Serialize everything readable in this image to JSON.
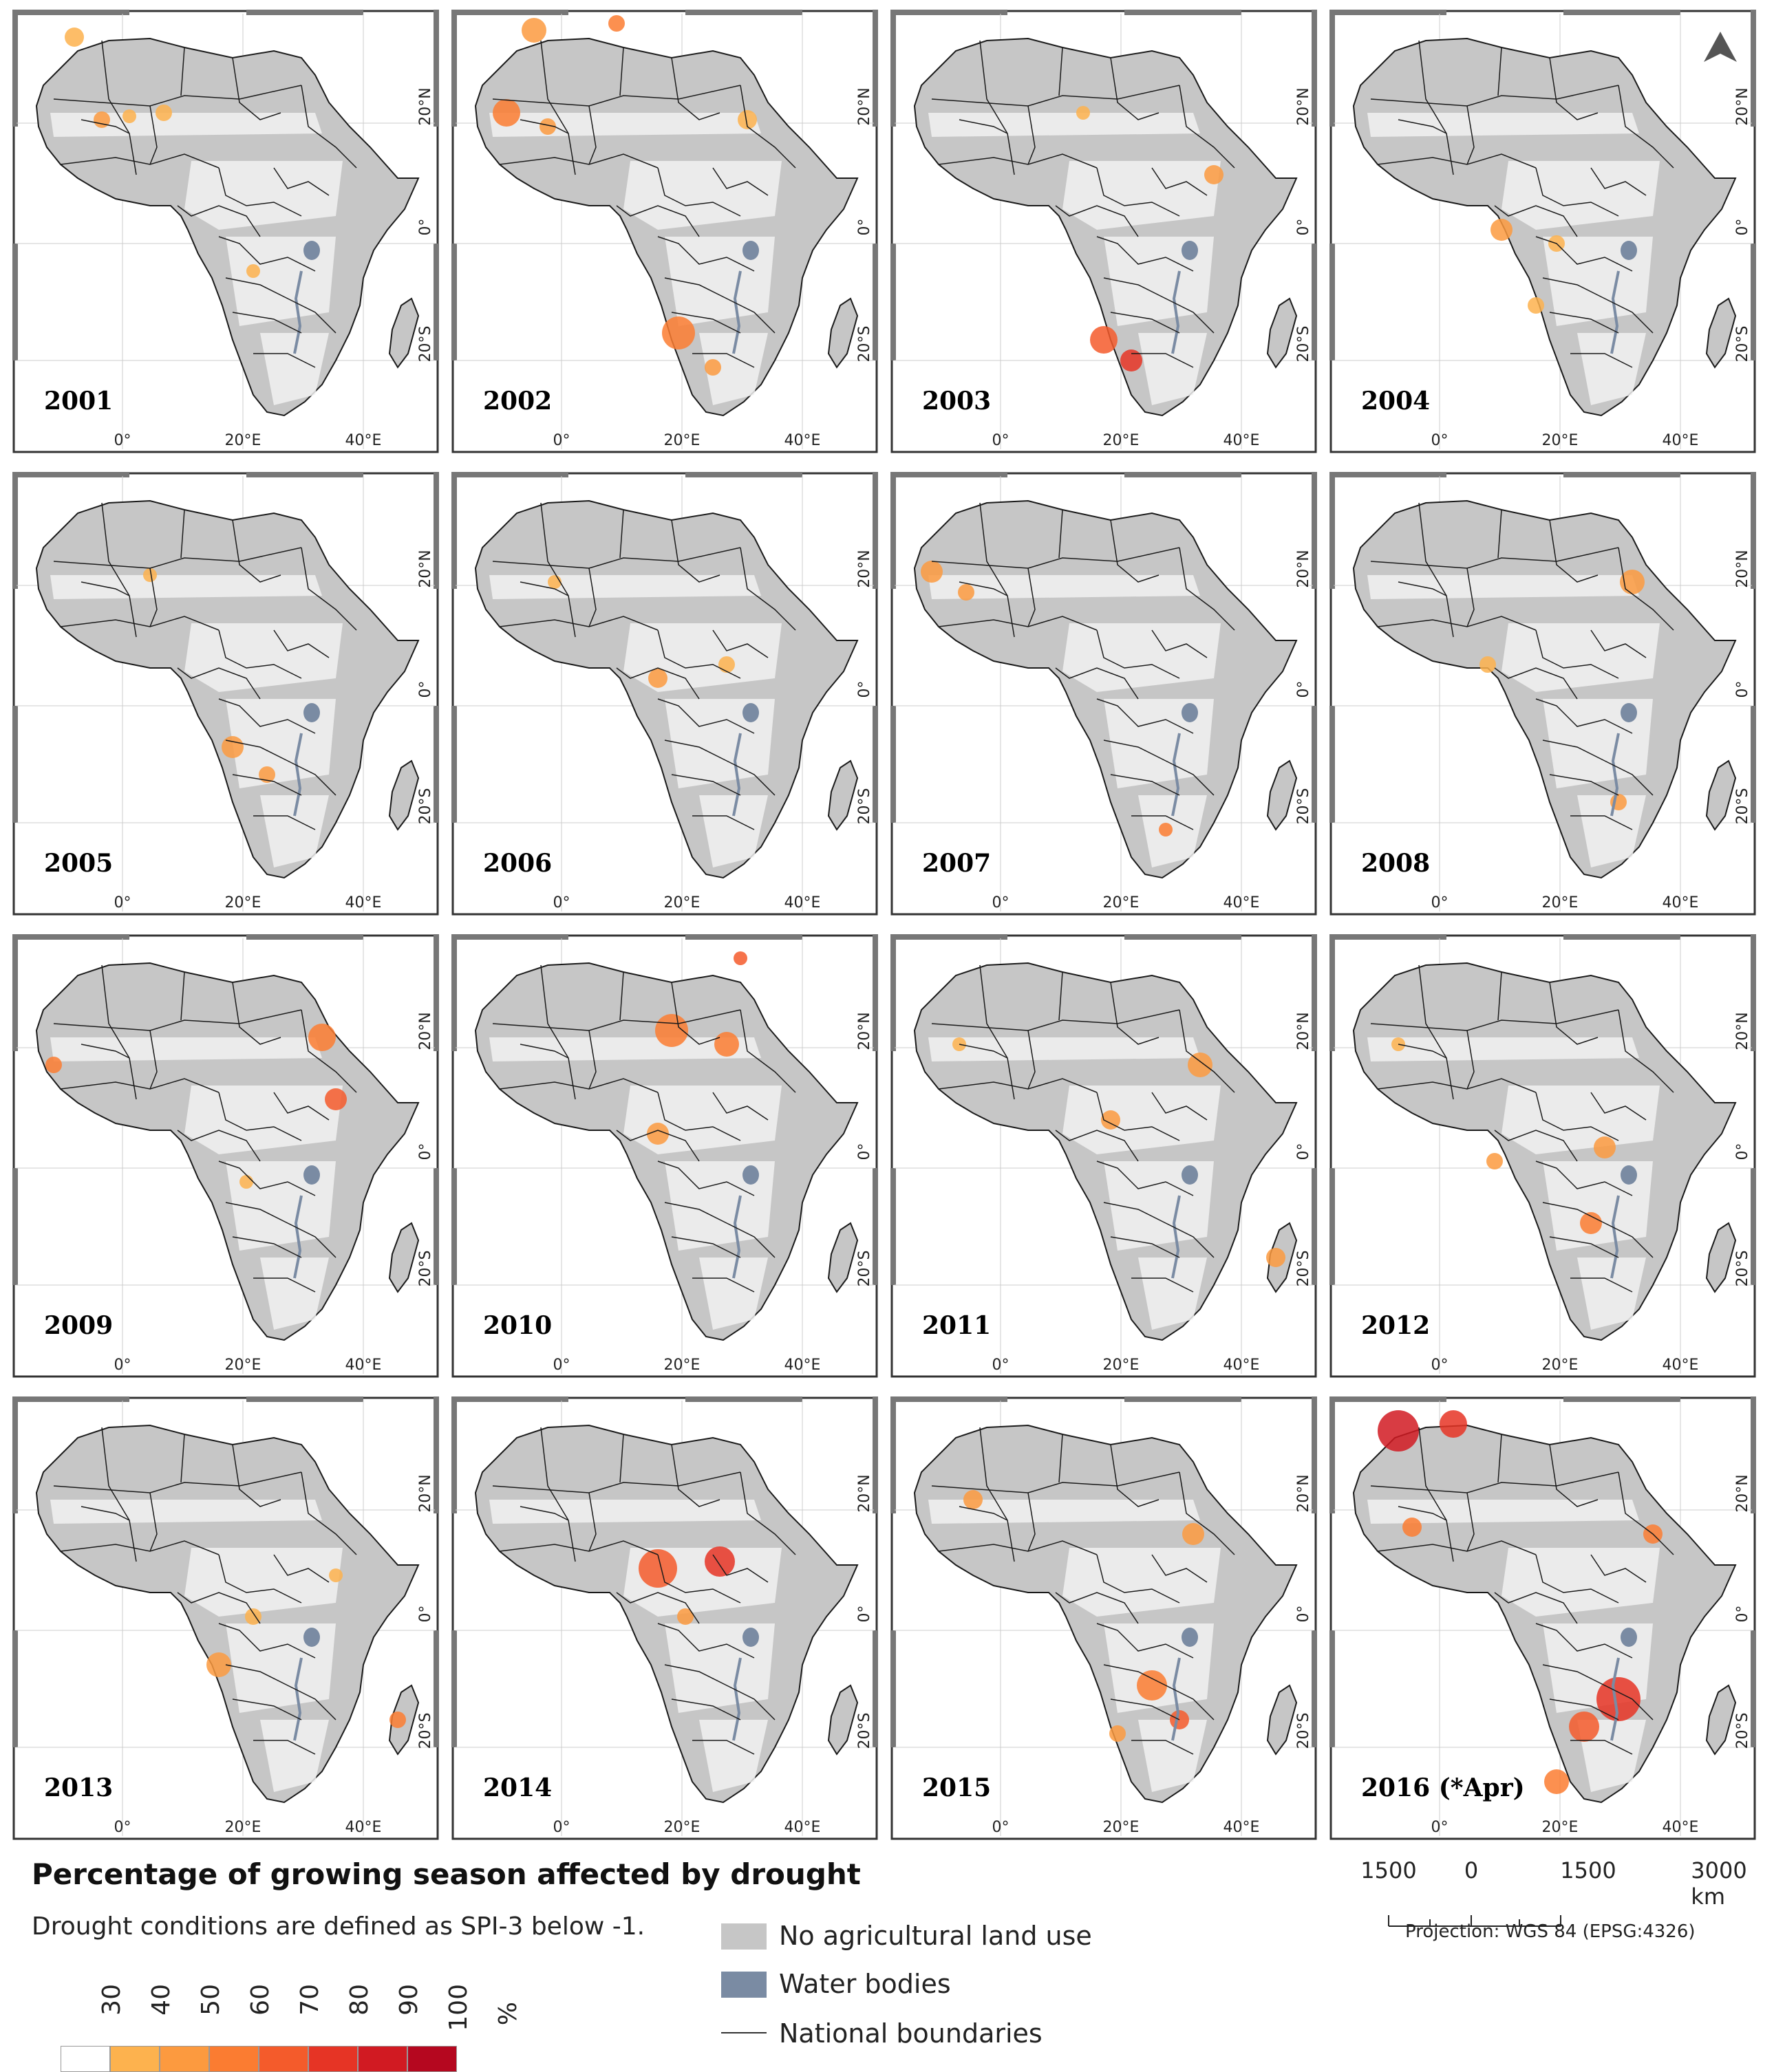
{
  "panels": [
    {
      "year": "2001"
    },
    {
      "year": "2002"
    },
    {
      "year": "2003"
    },
    {
      "year": "2004"
    },
    {
      "year": "2005"
    },
    {
      "year": "2006"
    },
    {
      "year": "2007"
    },
    {
      "year": "2008"
    },
    {
      "year": "2009"
    },
    {
      "year": "2010"
    },
    {
      "year": "2011"
    },
    {
      "year": "2012"
    },
    {
      "year": "2013"
    },
    {
      "year": "2014"
    },
    {
      "year": "2015"
    },
    {
      "year": "2016 (*Apr)"
    }
  ],
  "axis_labels": {
    "lon": [
      "0°",
      "20°E",
      "40°E"
    ],
    "lat": [
      "20°N",
      "0°",
      "20°S"
    ]
  },
  "legend": {
    "title": "Percentage of growing season affected by drought",
    "subtitle": "Drought conditions are defined as SPI-3 below -1.",
    "colorbar_ticks": [
      "30",
      "40",
      "50",
      "60",
      "70",
      "80",
      "90",
      "100"
    ],
    "colorbar_unit": "%",
    "colorbar_colors": [
      "#ffffff",
      "#fdb24e",
      "#fc9a3f",
      "#fb7c31",
      "#f45b2b",
      "#e63425",
      "#d11a22",
      "#b5071f"
    ],
    "items": [
      {
        "label": "No agricultural land use",
        "color": "#c6c6c6"
      },
      {
        "label": "Water bodies",
        "color": "#7a8ba3"
      },
      {
        "label": "National boundaries",
        "color": "#333333"
      }
    ]
  },
  "scalebar": {
    "ticks": [
      "1500",
      "0",
      "1500",
      "3000 km"
    ],
    "projection": "Projection: WGS 84 (EPSG:4326)"
  },
  "colors": {
    "land": "#c6c6c6",
    "agri": "#f1f1f1",
    "water": "#7a8ba3",
    "border": "#1a1a1a",
    "frame": "#333333"
  }
}
